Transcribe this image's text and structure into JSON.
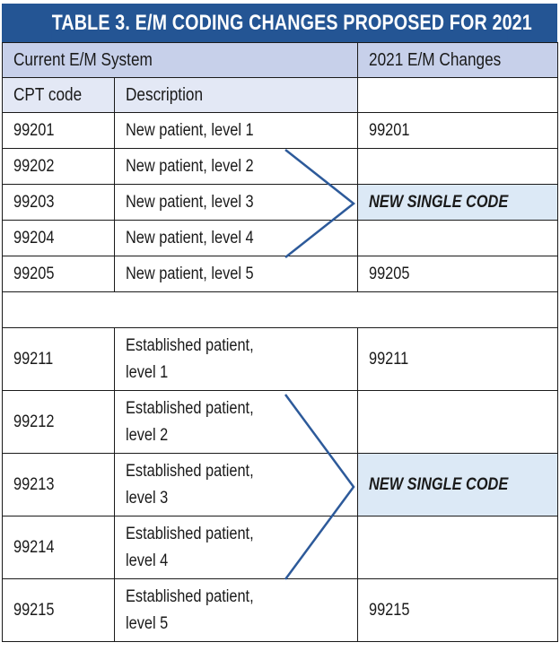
{
  "title": "TABLE 3. E/M CODING CHANGES PROPOSED FOR 2021",
  "header": {
    "current_system": "Current E/M System",
    "changes_2021": "2021 E/M Changes",
    "cpt_code": "CPT code",
    "description": "Description"
  },
  "new_patient_rows": [
    {
      "code": "99201",
      "description": "New patient, level 1",
      "change": "99201"
    },
    {
      "code": "99202",
      "description": "New patient, level 2",
      "change": ""
    },
    {
      "code": "99203",
      "description": "New patient, level 3",
      "change": "NEW SINGLE CODE"
    },
    {
      "code": "99204",
      "description": "New patient, level 4",
      "change": ""
    },
    {
      "code": "99205",
      "description": "New patient, level 5",
      "change": "99205"
    }
  ],
  "established_rows": [
    {
      "code": "99211",
      "description_line1": "Established patient,",
      "description_line2": "level 1",
      "change": "99211"
    },
    {
      "code": "99212",
      "description_line1": "Established patient,",
      "description_line2": "level 2",
      "change": ""
    },
    {
      "code": "99213",
      "description_line1": "Established patient,",
      "description_line2": "level 3",
      "change": "NEW SINGLE CODE"
    },
    {
      "code": "99214",
      "description_line1": "Established patient,",
      "description_line2": "level 4",
      "change": ""
    },
    {
      "code": "99215",
      "description_line1": "Established patient,",
      "description_line2": "level 5",
      "change": "99215"
    }
  ],
  "colors": {
    "title_bg": "#245594",
    "header_bg": "#c7d0ea",
    "subheader_bg": "#e3e8f5",
    "highlight_bg": "#dce9f6",
    "arrow": "#2d5a9a"
  }
}
